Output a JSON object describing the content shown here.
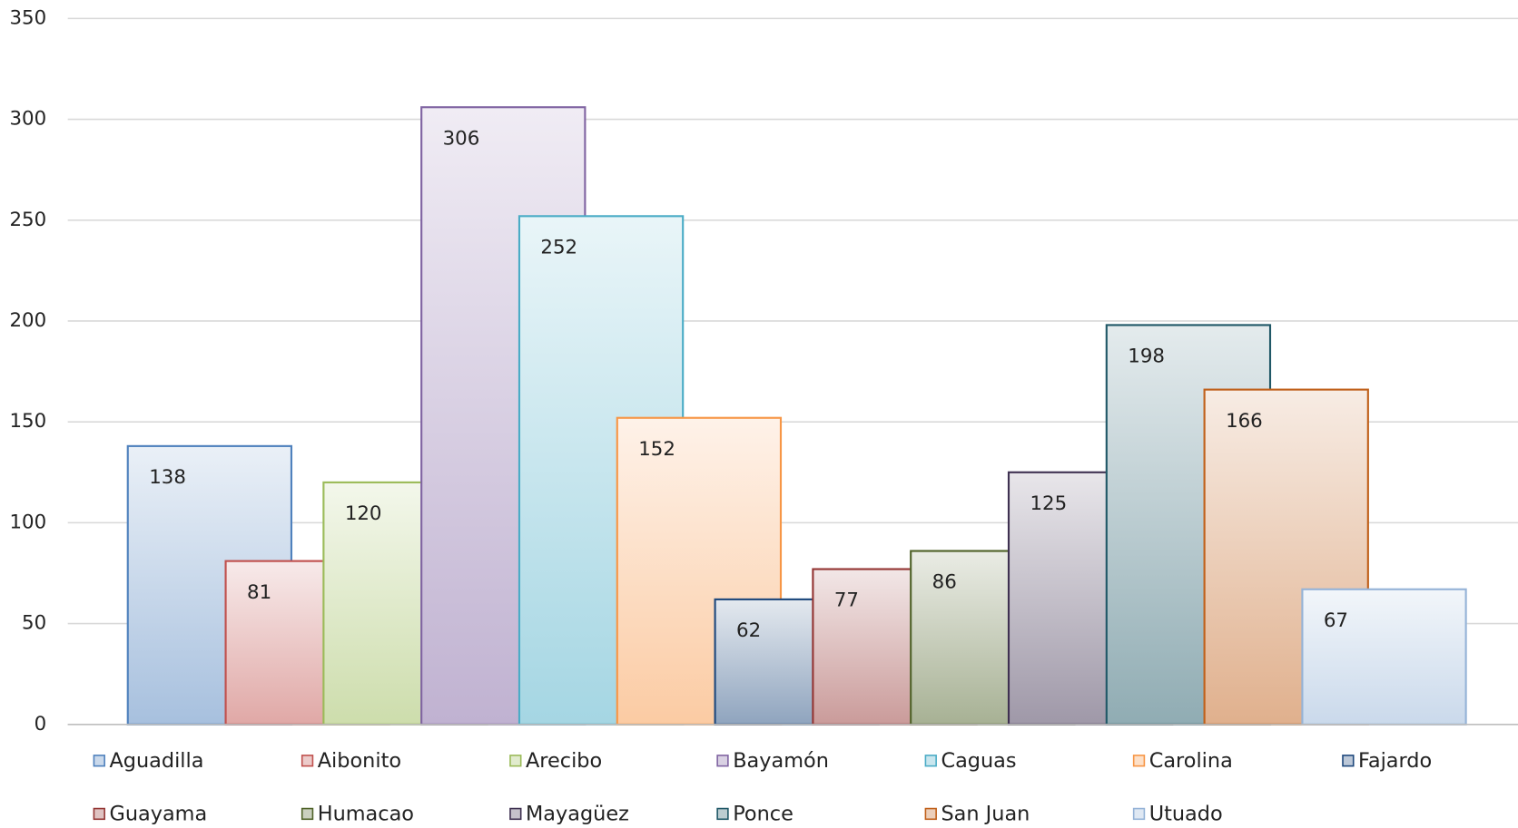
{
  "chart_data": {
    "type": "bar",
    "categories": [
      "Aguadilla",
      "Aibonito",
      "Arecibo",
      "Bayamón",
      "Caguas",
      "Carolina",
      "Fajardo",
      "Guayama",
      "Humacao",
      "Mayagüez",
      "Ponce",
      "San Juan",
      "Utuado"
    ],
    "values": [
      138,
      81,
      120,
      306,
      252,
      152,
      62,
      77,
      86,
      125,
      198,
      166,
      67
    ],
    "colors": [
      "#4f81bd",
      "#c0504d",
      "#9bbb59",
      "#8064a2",
      "#4bacc6",
      "#f79646",
      "#1f497d",
      "#943634",
      "#4f6228",
      "#3f3151",
      "#205867",
      "#c0601a",
      "#95b3d7"
    ],
    "ylim": [
      0,
      350
    ],
    "yticks": [
      0,
      50,
      100,
      150,
      200,
      250,
      300,
      350
    ],
    "grid": true,
    "legend": "bottom"
  }
}
